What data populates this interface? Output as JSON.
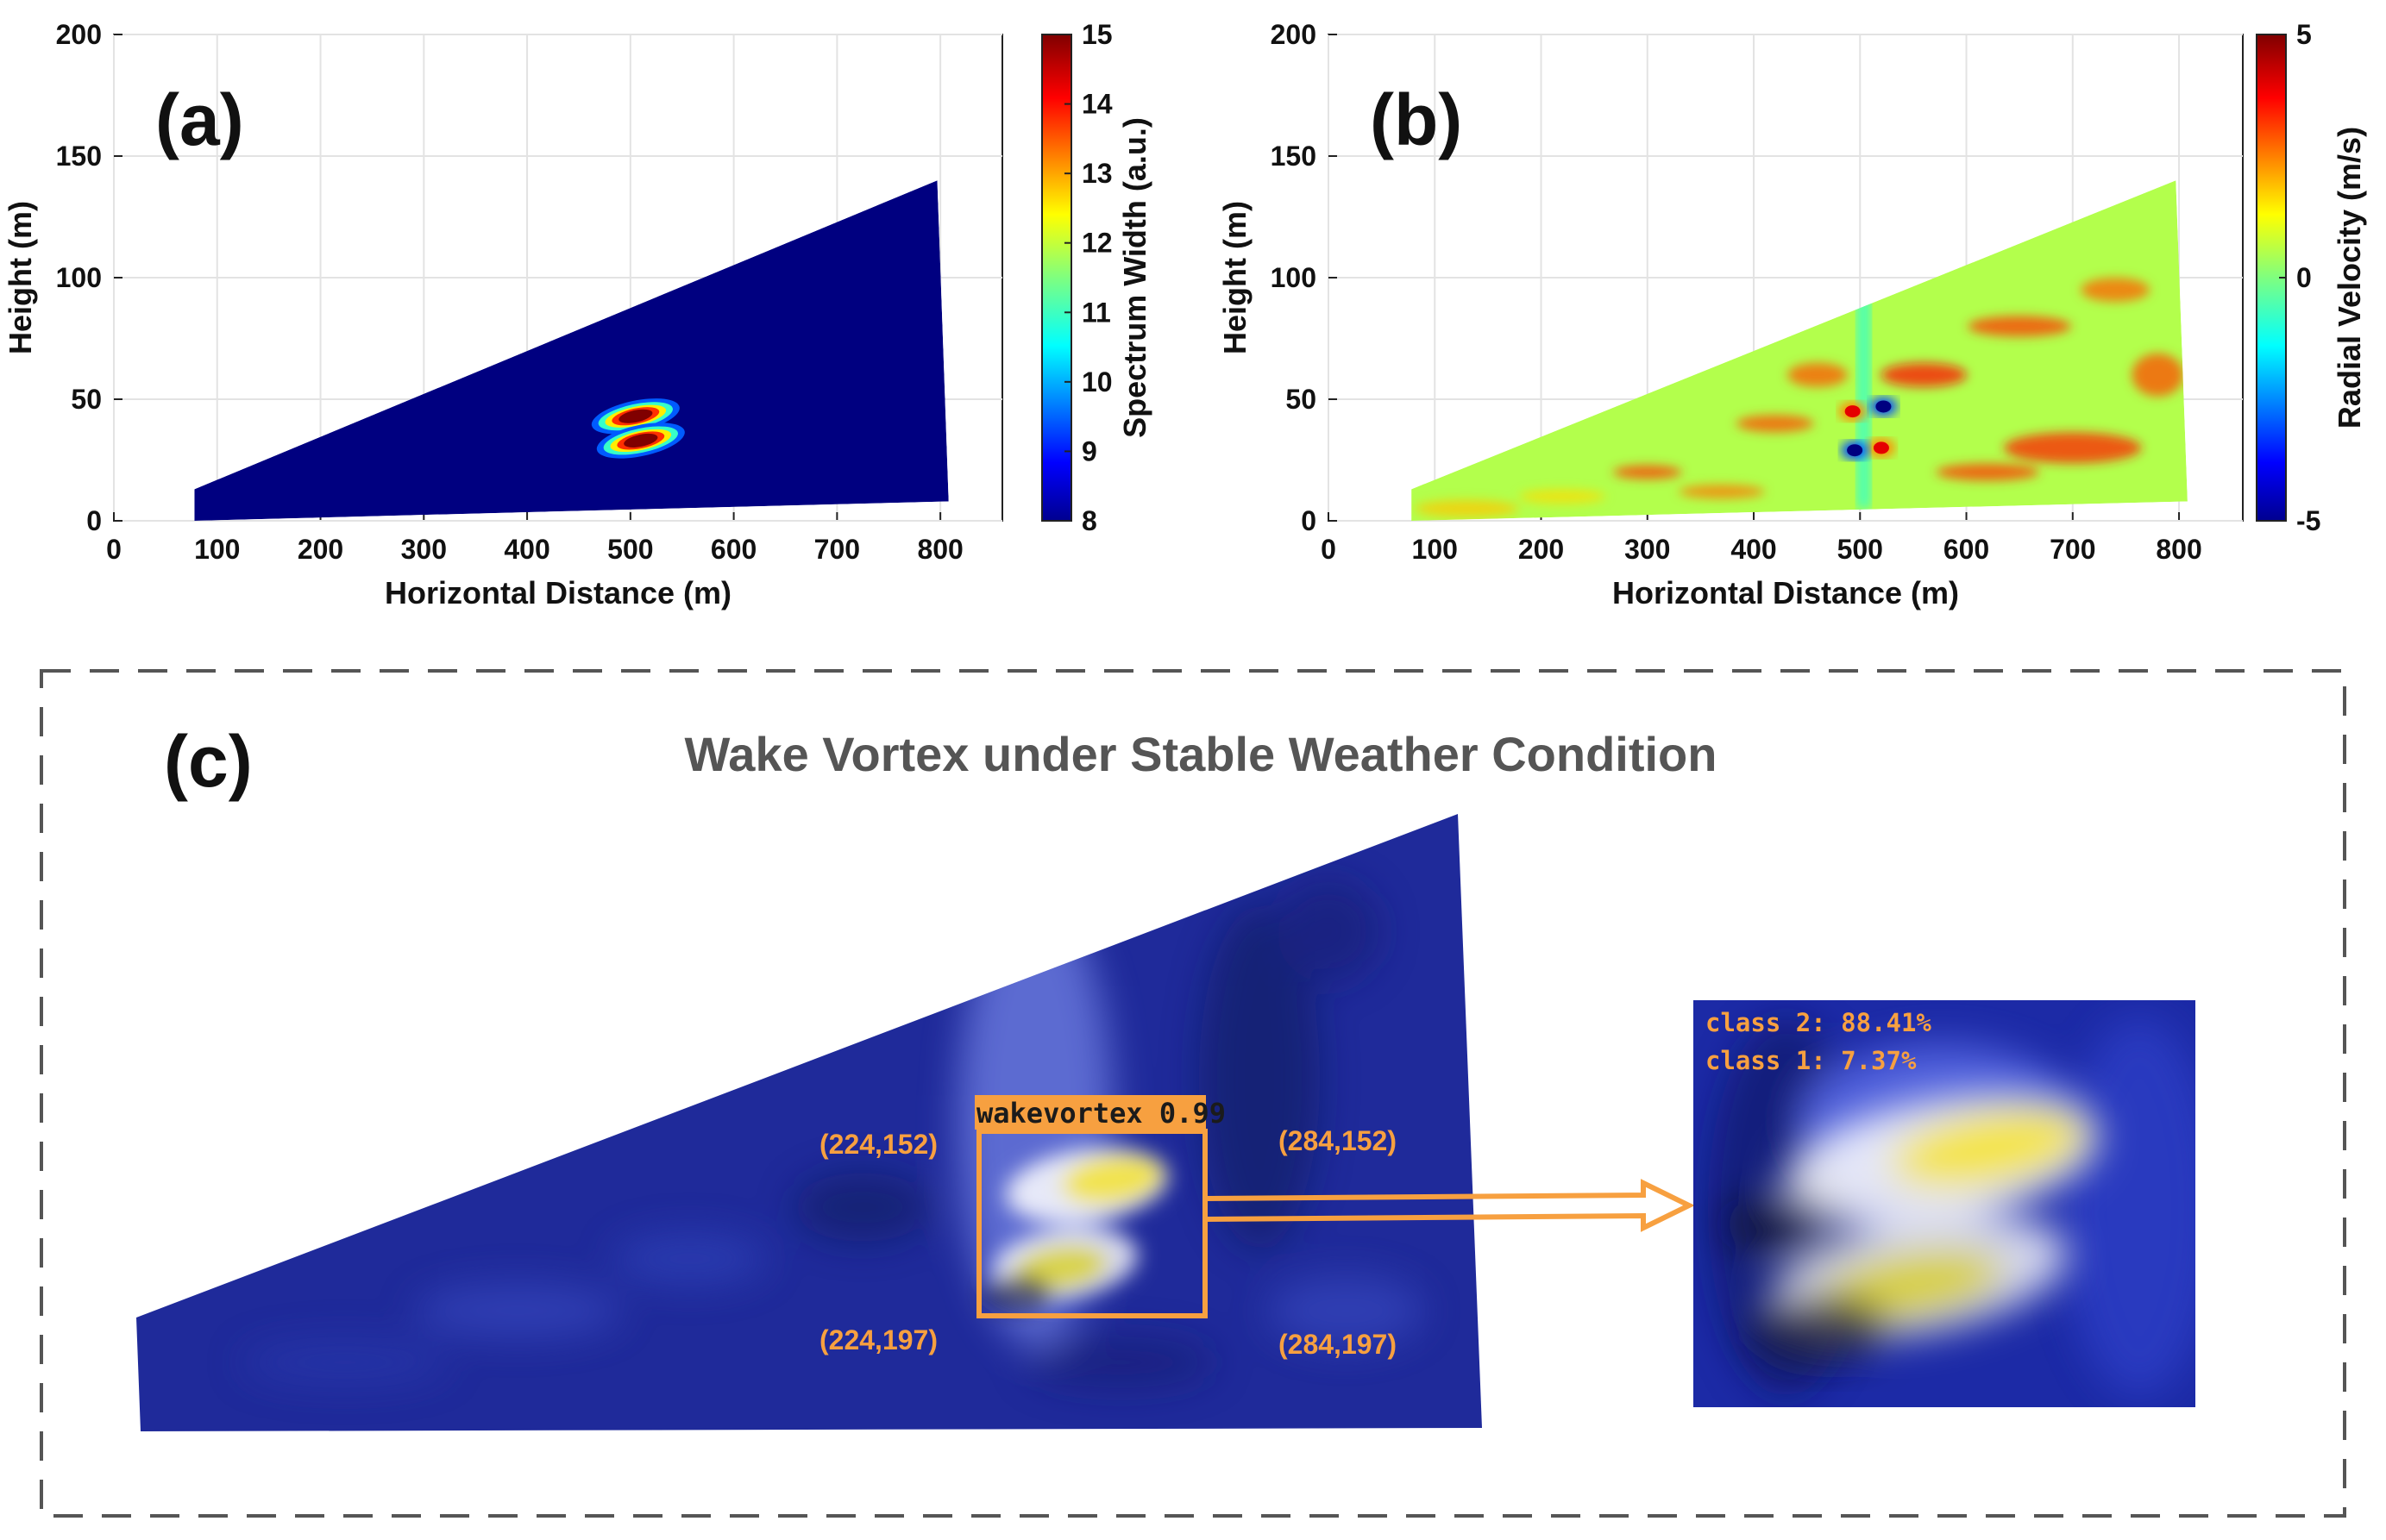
{
  "chart_data": [
    {
      "type": "heatmap",
      "panel_label": "(a)",
      "xlabel": "Horizontal Distance (m)",
      "ylabel": "Height (m)",
      "xlim": [
        0,
        860
      ],
      "ylim": [
        0,
        200
      ],
      "xticks": [
        0,
        100,
        200,
        300,
        400,
        500,
        600,
        700,
        800
      ],
      "yticks": [
        0,
        50,
        100,
        150,
        200
      ],
      "scan_region": [
        [
          78,
          13
        ],
        [
          797,
          140
        ],
        [
          808,
          8
        ],
        [
          78,
          0
        ]
      ],
      "colorbar": {
        "label": "Spectrum Width (a.u.)",
        "min": 8,
        "max": 15,
        "ticks": [
          8,
          9,
          10,
          11,
          12,
          13,
          14,
          15
        ]
      },
      "background_value": 8,
      "features": [
        {
          "x": 505,
          "y": 43,
          "peak": 15
        },
        {
          "x": 510,
          "y": 33,
          "peak": 15
        }
      ]
    },
    {
      "type": "heatmap",
      "panel_label": "(b)",
      "xlabel": "Horizontal Distance (m)",
      "ylabel": "Height (m)",
      "xlim": [
        0,
        860
      ],
      "ylim": [
        0,
        200
      ],
      "xticks": [
        0,
        100,
        200,
        300,
        400,
        500,
        600,
        700,
        800
      ],
      "yticks": [
        0,
        50,
        100,
        150,
        200
      ],
      "scan_region": [
        [
          78,
          13
        ],
        [
          797,
          140
        ],
        [
          808,
          8
        ],
        [
          78,
          0
        ]
      ],
      "colorbar": {
        "label": "Radial Velocity (m/s)",
        "min": -5,
        "max": 5,
        "ticks": [
          -5,
          0,
          5
        ]
      },
      "background_value": 0.5,
      "features": [
        {
          "x": 493,
          "y": 45,
          "value": 4
        },
        {
          "x": 520,
          "y": 30,
          "value": 4
        },
        {
          "x": 522,
          "y": 47,
          "value": -5
        },
        {
          "x": 495,
          "y": 29,
          "value": -5
        }
      ]
    }
  ],
  "panel_c": {
    "label": "(c)",
    "title": "Wake Vortex under Stable Weather Condition",
    "detection_label": "wakevortex 0.99",
    "corners": {
      "top_left": "(224,152)",
      "top_right": "(284,152)",
      "bottom_left": "(224,197)",
      "bottom_right": "(284,197)"
    },
    "classes": [
      "class 2: 88.41%",
      "class 1: 7.37%"
    ]
  },
  "colors": {
    "accent": "#f7a040",
    "deep_blue": "#00008f",
    "panel_c_blue": "#1f2a9a"
  }
}
